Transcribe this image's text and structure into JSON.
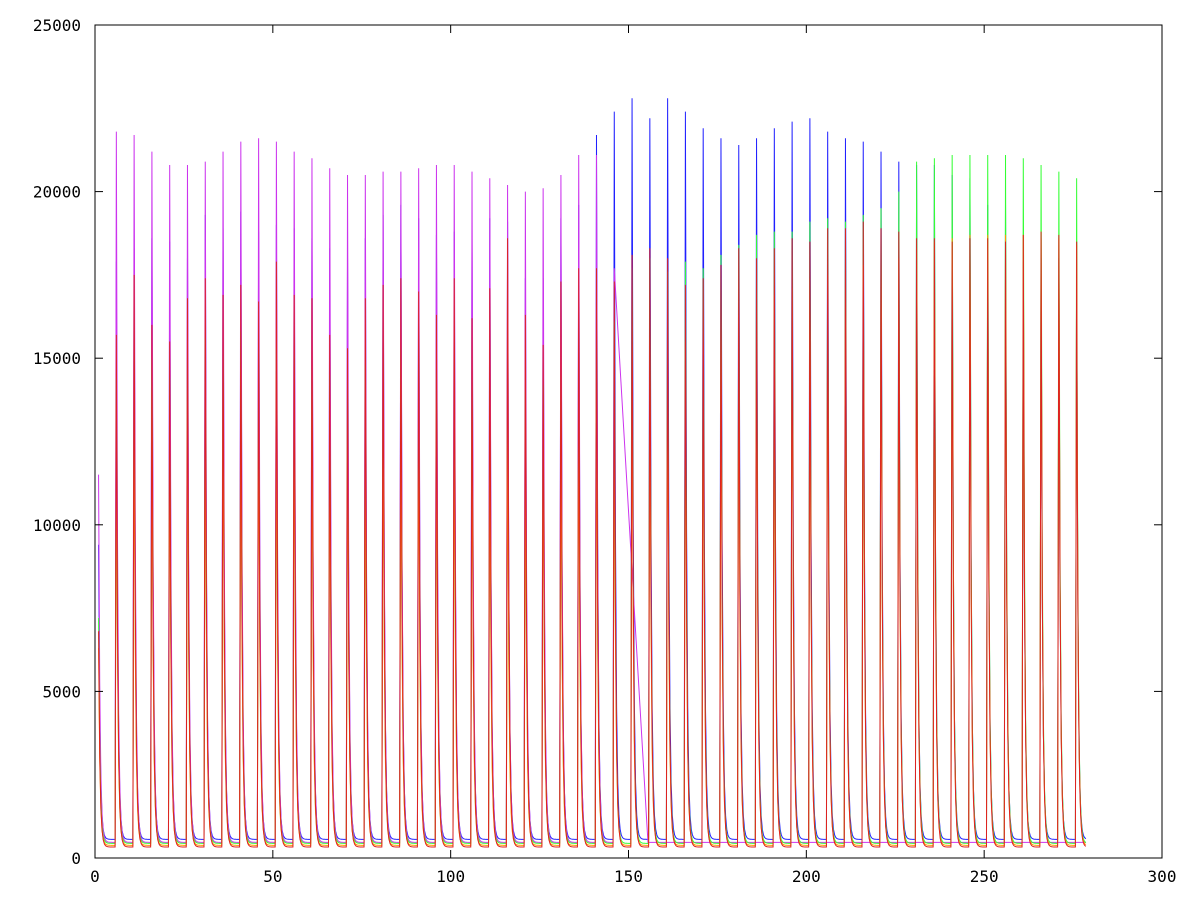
{
  "chart_data": {
    "type": "line",
    "title": "",
    "xlabel": "",
    "ylabel": "",
    "xlim": [
      0,
      300
    ],
    "ylim": [
      0,
      25000
    ],
    "x_ticks": [
      0,
      50,
      100,
      150,
      200,
      250,
      300
    ],
    "y_ticks": [
      0,
      5000,
      10000,
      15000,
      20000,
      25000
    ],
    "x_tick_labels": [
      "0",
      "50",
      "100",
      "150",
      "200",
      "250",
      "300"
    ],
    "y_tick_labels": [
      "0",
      "5000",
      "10000",
      "15000",
      "20000",
      "25000"
    ],
    "grid": false,
    "legend": "none",
    "pulse_period": 5,
    "pulse_decay_to": 400,
    "series": [
      {
        "color": "#2020ff",
        "first_peak_x": 1,
        "peak_x": [
          1,
          6,
          11,
          16,
          21,
          26,
          31,
          36,
          41,
          46,
          51,
          56,
          61,
          66,
          71,
          76,
          81,
          86,
          91,
          96,
          101,
          106,
          111,
          116,
          121,
          126,
          131,
          136,
          141,
          146,
          151,
          156,
          161,
          166,
          171,
          176,
          181,
          186,
          191,
          196,
          201,
          206,
          211,
          216,
          221,
          226,
          231,
          236,
          241,
          246,
          251,
          256,
          261,
          266,
          271,
          276
        ],
        "peak_y": [
          9400,
          17900,
          18300,
          18600,
          18500,
          18000,
          19300,
          18900,
          19400,
          18800,
          19000,
          18900,
          18600,
          18300,
          18000,
          18600,
          19300,
          19600,
          19200,
          18700,
          18800,
          18400,
          19200,
          19100,
          17400,
          17400,
          19200,
          19600,
          21700,
          22400,
          22800,
          22200,
          22800,
          22400,
          21900,
          21600,
          21400,
          21600,
          21900,
          22100,
          22200,
          21800,
          21600,
          21500,
          21200,
          20900,
          20800,
          20800,
          20500,
          20400,
          19600,
          19600,
          17900,
          18000,
          18000,
          18500
        ],
        "trough_y": 560
      },
      {
        "color": "#cc33ee",
        "first_peak_x": 1,
        "peak_x": [
          1,
          6,
          11,
          16,
          21,
          26,
          31,
          36,
          41,
          46,
          51,
          56,
          61,
          66,
          71,
          76,
          81,
          86,
          91,
          96,
          101,
          106,
          111,
          116,
          121,
          126,
          131,
          136,
          141,
          146
        ],
        "peak_y": [
          11500,
          21800,
          21700,
          21200,
          20800,
          20800,
          20900,
          21200,
          21500,
          21600,
          21500,
          21200,
          21000,
          20700,
          20500,
          20500,
          20600,
          20600,
          20700,
          20800,
          20800,
          20600,
          20400,
          20200,
          20000,
          20100,
          20500,
          21100,
          21100,
          17700
        ],
        "trough_y": 470
      },
      {
        "color": "#33ff33",
        "first_peak_x": 1,
        "peak_x": [
          1,
          6,
          11,
          16,
          21,
          26,
          31,
          36,
          41,
          46,
          51,
          56,
          61,
          66,
          71,
          76,
          81,
          86,
          91,
          96,
          101,
          106,
          111,
          116,
          121,
          126,
          131,
          136,
          141,
          146,
          151,
          156,
          161,
          166,
          171,
          176,
          181,
          186,
          191,
          196,
          201,
          206,
          211,
          216,
          221,
          226,
          231,
          236,
          241,
          246,
          251,
          256,
          261,
          266,
          271,
          276
        ],
        "peak_y": [
          7200,
          14400,
          15100,
          15000,
          14400,
          14900,
          15600,
          15200,
          15800,
          15200,
          15300,
          15100,
          14800,
          14500,
          14300,
          14800,
          15000,
          15300,
          15000,
          14600,
          14900,
          14500,
          14300,
          14300,
          14000,
          14200,
          14500,
          14900,
          15700,
          16100,
          17700,
          18000,
          17600,
          17900,
          17700,
          18100,
          18400,
          18700,
          18800,
          18800,
          19100,
          19200,
          19100,
          19300,
          19500,
          20000,
          20900,
          21000,
          21100,
          21100,
          21100,
          21100,
          21000,
          20800,
          20600,
          20400
        ],
        "trough_y": 440
      },
      {
        "color": "#ff9900",
        "first_peak_x": 1,
        "peak_x": [
          1,
          6,
          11,
          16,
          21,
          26,
          31,
          36,
          41,
          46,
          51,
          56,
          61,
          66,
          71,
          76,
          81,
          86,
          91,
          96,
          101,
          106,
          111,
          116,
          121,
          126,
          131,
          136,
          141,
          146,
          151,
          156,
          161,
          166,
          171,
          176,
          181,
          186,
          191,
          196,
          201,
          206,
          211,
          216,
          221,
          226,
          231,
          236,
          241,
          246,
          251,
          256,
          261,
          266,
          271,
          276
        ],
        "peak_y": [
          6300,
          13600,
          13900,
          14000,
          13600,
          14000,
          14400,
          14300,
          14700,
          14400,
          14500,
          14300,
          13900,
          13600,
          13400,
          13800,
          14000,
          14200,
          13900,
          13600,
          13900,
          13500,
          13300,
          13200,
          13000,
          13300,
          13700,
          14200,
          14500,
          14900,
          15400,
          15600,
          15300,
          15500,
          15400,
          15900,
          16300,
          16600,
          16900,
          17100,
          17400,
          17500,
          17600,
          17800,
          17800,
          18000,
          18300,
          18500,
          18600,
          18700,
          18700,
          18700,
          18700,
          18600,
          18600,
          18400
        ],
        "trough_y": 380
      },
      {
        "color": "#dd2222",
        "first_peak_x": 1,
        "peak_x": [
          1,
          6,
          11,
          16,
          21,
          26,
          31,
          36,
          41,
          46,
          51,
          56,
          61,
          66,
          71,
          76,
          81,
          86,
          91,
          96,
          101,
          106,
          111,
          116,
          121,
          126,
          131,
          136,
          141,
          146,
          151,
          156,
          161,
          166,
          171,
          176,
          181,
          186,
          191,
          196,
          201,
          206,
          211,
          216,
          221,
          226,
          231,
          236,
          241,
          246,
          251,
          256,
          261,
          266,
          271,
          276
        ],
        "peak_y": [
          6800,
          15700,
          17500,
          16000,
          15500,
          16800,
          17400,
          16900,
          17200,
          16700,
          17900,
          16900,
          16800,
          15700,
          15300,
          16800,
          17200,
          17400,
          17000,
          16300,
          17400,
          16200,
          17100,
          18600,
          16300,
          15400,
          17300,
          17700,
          17700,
          17300,
          18100,
          18300,
          18000,
          17200,
          17400,
          17800,
          18300,
          18000,
          18300,
          18600,
          18500,
          18900,
          18900,
          19100,
          18900,
          18800,
          18600,
          18600,
          18500,
          18600,
          18600,
          18500,
          18700,
          18800,
          18700,
          18500
        ],
        "trough_y": 330
      }
    ]
  }
}
